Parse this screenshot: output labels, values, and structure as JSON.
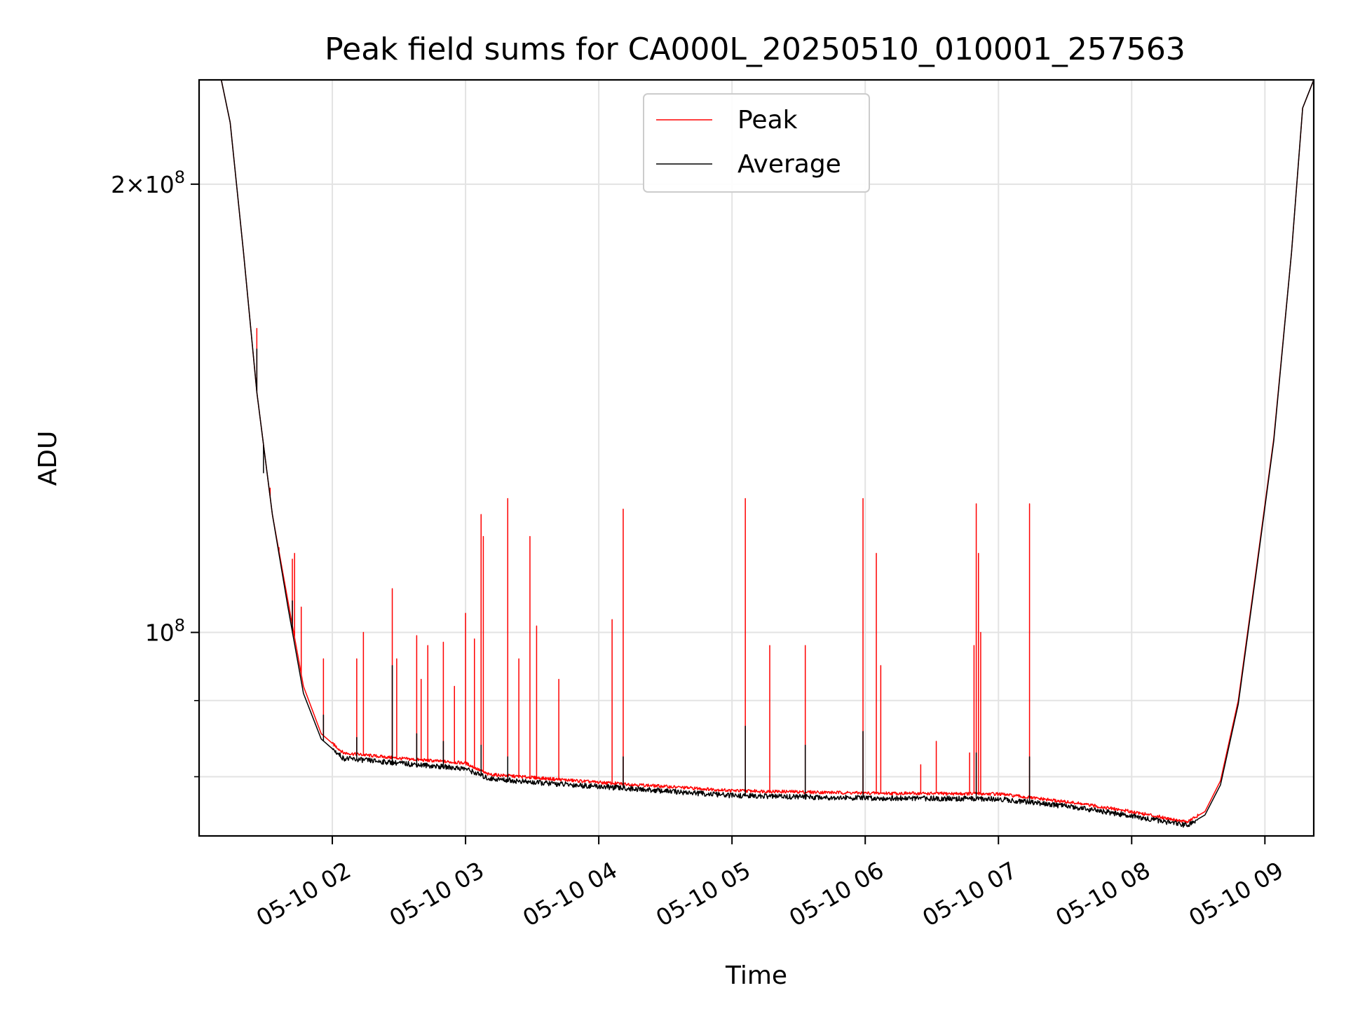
{
  "chart_data": {
    "type": "line",
    "title": "Peak field sums for CA000L_20250510_010001_257563",
    "xlabel": "Time",
    "ylabel": "ADU",
    "x_unit": "time (2025-05-10, hours)",
    "xlim": [
      "2025-05-10 01:00",
      "2025-05-10 09:22"
    ],
    "ylim": [
      73000000,
      235000000
    ],
    "yscale": "log",
    "grid": true,
    "legend_position": "top-center",
    "x_ticks": [
      "05-10 02",
      "05-10 03",
      "05-10 04",
      "05-10 05",
      "05-10 06",
      "05-10 07",
      "05-10 08",
      "05-10 09"
    ],
    "y_ticks": [
      {
        "value": 100000000,
        "label": "10^8"
      },
      {
        "value": 200000000,
        "label": "2×10^8"
      }
    ],
    "y_minor_ticks": [
      80000000,
      90000000
    ],
    "series": [
      {
        "name": "Peak",
        "color": "#ff0000",
        "baseline": [
          [
            "2025-05-10 01:00",
            235000000
          ],
          [
            "2025-05-10 01:10",
            235000000
          ],
          [
            "2025-05-10 01:14",
            220000000
          ],
          [
            "2025-05-10 01:20",
            180000000
          ],
          [
            "2025-05-10 01:26",
            145000000
          ],
          [
            "2025-05-10 01:33",
            120000000
          ],
          [
            "2025-05-10 01:40",
            105000000
          ],
          [
            "2025-05-10 01:47",
            92000000
          ],
          [
            "2025-05-10 01:55",
            85500000
          ],
          [
            "2025-05-10 02:05",
            83000000
          ],
          [
            "2025-05-10 02:30",
            82300000
          ],
          [
            "2025-05-10 03:00",
            81700000
          ],
          [
            "2025-05-10 03:10",
            80300000
          ],
          [
            "2025-05-10 03:30",
            79900000
          ],
          [
            "2025-05-10 04:00",
            79300000
          ],
          [
            "2025-05-10 05:00",
            78300000
          ],
          [
            "2025-05-10 06:00",
            78000000
          ],
          [
            "2025-05-10 07:00",
            77900000
          ],
          [
            "2025-05-10 07:35",
            76800000
          ],
          [
            "2025-05-10 08:00",
            75800000
          ],
          [
            "2025-05-10 08:25",
            74600000
          ],
          [
            "2025-05-10 08:33",
            75800000
          ],
          [
            "2025-05-10 08:40",
            79500000
          ],
          [
            "2025-05-10 08:48",
            90000000
          ],
          [
            "2025-05-10 08:56",
            110000000
          ],
          [
            "2025-05-10 09:04",
            135000000
          ],
          [
            "2025-05-10 09:12",
            180000000
          ],
          [
            "2025-05-10 09:17",
            225000000
          ],
          [
            "2025-05-10 09:22",
            235000000
          ]
        ],
        "spikes": [
          [
            "2025-05-10 01:26",
            160000000
          ],
          [
            "2025-05-10 01:29",
            133000000
          ],
          [
            "2025-05-10 01:32",
            125000000
          ],
          [
            "2025-05-10 01:36",
            114000000
          ],
          [
            "2025-05-10 01:42",
            112000000
          ],
          [
            "2025-05-10 01:43",
            113000000
          ],
          [
            "2025-05-10 01:46",
            104000000
          ],
          [
            "2025-05-10 01:56",
            96000000
          ],
          [
            "2025-05-10 02:11",
            96000000
          ],
          [
            "2025-05-10 02:14",
            100000000
          ],
          [
            "2025-05-10 02:27",
            107000000
          ],
          [
            "2025-05-10 02:29",
            96000000
          ],
          [
            "2025-05-10 02:38",
            99500000
          ],
          [
            "2025-05-10 02:40",
            93000000
          ],
          [
            "2025-05-10 02:43",
            98000000
          ],
          [
            "2025-05-10 02:50",
            98500000
          ],
          [
            "2025-05-10 02:55",
            92000000
          ],
          [
            "2025-05-10 03:00",
            103000000
          ],
          [
            "2025-05-10 03:04",
            99000000
          ],
          [
            "2025-05-10 03:07",
            120000000
          ],
          [
            "2025-05-10 03:08",
            116000000
          ],
          [
            "2025-05-10 03:19",
            123000000
          ],
          [
            "2025-05-10 03:24",
            96000000
          ],
          [
            "2025-05-10 03:29",
            116000000
          ],
          [
            "2025-05-10 03:32",
            101000000
          ],
          [
            "2025-05-10 03:42",
            93000000
          ],
          [
            "2025-05-10 04:06",
            102000000
          ],
          [
            "2025-05-10 04:11",
            121000000
          ],
          [
            "2025-05-10 05:06",
            123000000
          ],
          [
            "2025-05-10 05:17",
            98000000
          ],
          [
            "2025-05-10 05:33",
            98000000
          ],
          [
            "2025-05-10 05:59",
            123000000
          ],
          [
            "2025-05-10 06:05",
            113000000
          ],
          [
            "2025-05-10 06:07",
            95000000
          ],
          [
            "2025-05-10 06:25",
            81500000
          ],
          [
            "2025-05-10 06:32",
            84500000
          ],
          [
            "2025-05-10 06:47",
            83000000
          ],
          [
            "2025-05-10 06:49",
            98000000
          ],
          [
            "2025-05-10 06:50",
            122000000
          ],
          [
            "2025-05-10 06:51",
            113000000
          ],
          [
            "2025-05-10 06:52",
            100000000
          ],
          [
            "2025-05-10 07:14",
            122000000
          ]
        ]
      },
      {
        "name": "Average",
        "color": "#000000",
        "baseline": [
          [
            "2025-05-10 01:00",
            235000000
          ],
          [
            "2025-05-10 01:10",
            235000000
          ],
          [
            "2025-05-10 01:14",
            220000000
          ],
          [
            "2025-05-10 01:20",
            180000000
          ],
          [
            "2025-05-10 01:26",
            145000000
          ],
          [
            "2025-05-10 01:33",
            120000000
          ],
          [
            "2025-05-10 01:40",
            104000000
          ],
          [
            "2025-05-10 01:47",
            91000000
          ],
          [
            "2025-05-10 01:55",
            84800000
          ],
          [
            "2025-05-10 02:05",
            82300000
          ],
          [
            "2025-05-10 02:30",
            81700000
          ],
          [
            "2025-05-10 03:00",
            81000000
          ],
          [
            "2025-05-10 03:10",
            79800000
          ],
          [
            "2025-05-10 03:30",
            79300000
          ],
          [
            "2025-05-10 04:00",
            78800000
          ],
          [
            "2025-05-10 05:00",
            77700000
          ],
          [
            "2025-05-10 06:00",
            77400000
          ],
          [
            "2025-05-10 07:00",
            77300000
          ],
          [
            "2025-05-10 07:35",
            76300000
          ],
          [
            "2025-05-10 08:00",
            75300000
          ],
          [
            "2025-05-10 08:25",
            74200000
          ],
          [
            "2025-05-10 08:33",
            75400000
          ],
          [
            "2025-05-10 08:40",
            79000000
          ],
          [
            "2025-05-10 08:48",
            89500000
          ],
          [
            "2025-05-10 08:56",
            109500000
          ],
          [
            "2025-05-10 09:04",
            134500000
          ],
          [
            "2025-05-10 09:12",
            180000000
          ],
          [
            "2025-05-10 09:17",
            225000000
          ],
          [
            "2025-05-10 09:22",
            235000000
          ]
        ],
        "spikes": [
          [
            "2025-05-10 01:26",
            155000000
          ],
          [
            "2025-05-10 01:29",
            128000000
          ],
          [
            "2025-05-10 01:42",
            105000000
          ],
          [
            "2025-05-10 01:56",
            88000000
          ],
          [
            "2025-05-10 02:11",
            85000000
          ],
          [
            "2025-05-10 02:27",
            95000000
          ],
          [
            "2025-05-10 02:38",
            85500000
          ],
          [
            "2025-05-10 02:50",
            84500000
          ],
          [
            "2025-05-10 03:07",
            84000000
          ],
          [
            "2025-05-10 03:19",
            82500000
          ],
          [
            "2025-05-10 04:11",
            82500000
          ],
          [
            "2025-05-10 05:06",
            86500000
          ],
          [
            "2025-05-10 05:33",
            84000000
          ],
          [
            "2025-05-10 05:59",
            85800000
          ],
          [
            "2025-05-10 06:50",
            83000000
          ],
          [
            "2025-05-10 07:14",
            82500000
          ]
        ]
      }
    ]
  }
}
